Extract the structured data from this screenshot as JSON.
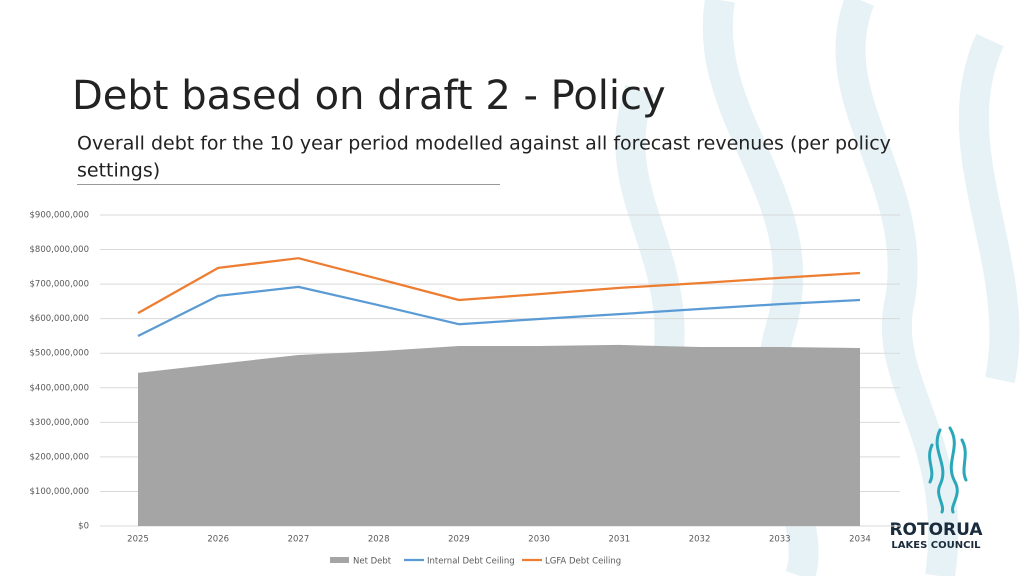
{
  "chart_data": {
    "type": "line",
    "title": "Debt based on draft 2 - Policy",
    "subtitle_lines": [
      "Overall debt for the 10 year period modelled against all forecast revenues (per policy",
      "settings)"
    ],
    "categories": [
      "2025",
      "2026",
      "2027",
      "2028",
      "2029",
      "2030",
      "2031",
      "2032",
      "2033",
      "2034"
    ],
    "series": [
      {
        "name": "Net Debt",
        "type": "area",
        "color": "#a5a5a5",
        "values": [
          443000000,
          469000000,
          495000000,
          506000000,
          521000000,
          521000000,
          524000000,
          518000000,
          518000000,
          515000000
        ]
      },
      {
        "name": "Internal Debt Ceiling",
        "type": "line",
        "color": "#5b9bd5",
        "values": [
          550000000,
          666000000,
          692000000,
          639000000,
          584000000,
          599000000,
          613000000,
          628000000,
          642000000,
          654000000
        ]
      },
      {
        "name": "LGFA Debt Ceiling",
        "type": "line",
        "color": "#ed7d31",
        "values": [
          616000000,
          747000000,
          775000000,
          715000000,
          654000000,
          671000000,
          689000000,
          703000000,
          718000000,
          732000000
        ]
      }
    ],
    "ylim": [
      0,
      900000000
    ],
    "yticks": [
      {
        "value": 0,
        "label": "$0"
      },
      {
        "value": 100000000,
        "label": "$100,000,000"
      },
      {
        "value": 200000000,
        "label": "$200,000,000"
      },
      {
        "value": 300000000,
        "label": "$300,000,000"
      },
      {
        "value": 400000000,
        "label": "$400,000,000"
      },
      {
        "value": 500000000,
        "label": "$500,000,000"
      },
      {
        "value": 600000000,
        "label": "$600,000,000"
      },
      {
        "value": 700000000,
        "label": "$700,000,000"
      },
      {
        "value": 800000000,
        "label": "$800,000,000"
      },
      {
        "value": 900000000,
        "label": "$900,000,000"
      }
    ],
    "grid": true,
    "legend": "bottom"
  },
  "logo": {
    "line1": "ROTORUA",
    "line2": "LAKES COUNCIL"
  }
}
